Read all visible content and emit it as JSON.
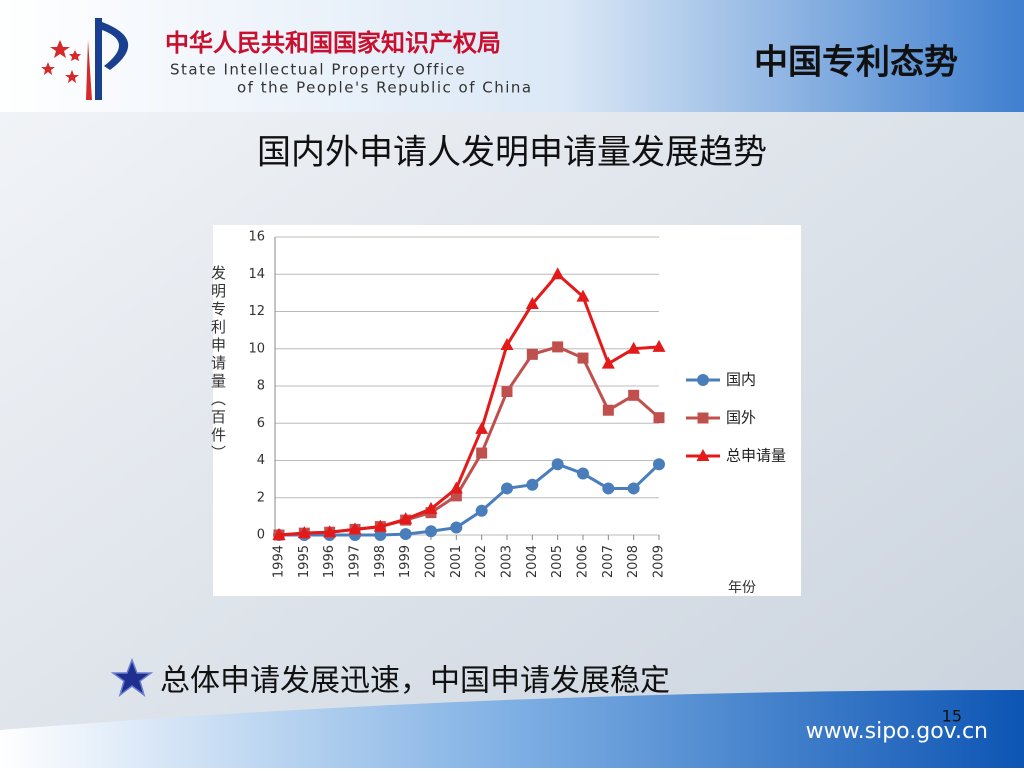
{
  "header": {
    "org_cn": "中华人民共和国国家知识产权局",
    "org_en_1": "State Intellectual Property Office",
    "org_en_2": "of the People's Republic of China",
    "section": "中国专利态势"
  },
  "slide_title": "国内外申请人发明申请量发展趋势",
  "bullet": "总体申请发展迅速，中国申请发展稳定",
  "page_number": "15",
  "website": "www.sipo.gov.cn",
  "chart_data": {
    "type": "line",
    "ylabel": "发明专利申请量（百件）",
    "xlabel": "年份",
    "categories": [
      "1994",
      "1995",
      "1996",
      "1997",
      "1998",
      "1999",
      "2000",
      "2001",
      "2002",
      "2003",
      "2004",
      "2005",
      "2006",
      "2007",
      "2008",
      "2009"
    ],
    "series": [
      {
        "name": "国内",
        "color": "#4a7ebb",
        "marker": "circle",
        "values": [
          0,
          0,
          0,
          0,
          0,
          0.05,
          0.2,
          0.4,
          1.3,
          2.5,
          2.7,
          3.8,
          3.3,
          2.5,
          2.5,
          3.8
        ]
      },
      {
        "name": "国外",
        "color": "#c0504d",
        "marker": "square",
        "values": [
          0,
          0.1,
          0.15,
          0.3,
          0.45,
          0.8,
          1.2,
          2.1,
          4.4,
          7.7,
          9.7,
          10.1,
          9.5,
          6.7,
          7.5,
          6.3
        ]
      },
      {
        "name": "总申请量",
        "color": "#e41a1a",
        "marker": "triangle",
        "values": [
          0,
          0.1,
          0.15,
          0.3,
          0.45,
          0.85,
          1.4,
          2.5,
          5.7,
          10.2,
          12.4,
          14.0,
          12.8,
          9.2,
          10.0,
          10.1
        ]
      }
    ],
    "ylim": [
      0,
      16
    ],
    "yticks": [
      0,
      2,
      4,
      6,
      8,
      10,
      12,
      14,
      16
    ],
    "grid": true,
    "legend": "right"
  }
}
